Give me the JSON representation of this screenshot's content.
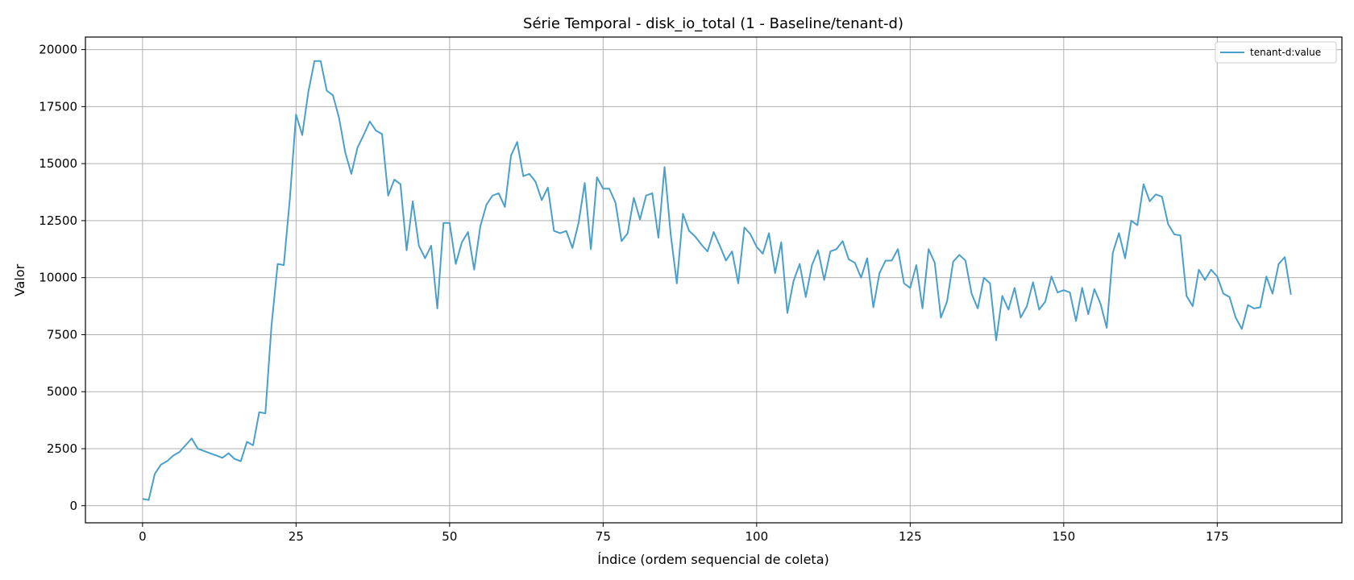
{
  "chart_data": {
    "type": "line",
    "title": "Série Temporal - disk_io_total (1 - Baseline/tenant-d)",
    "xlabel": "Índice (ordem sequencial de coleta)",
    "ylabel": "Valor",
    "xlim": [
      -9.3,
      195.3
    ],
    "ylim": [
      -750,
      20550
    ],
    "xticks": [
      0,
      25,
      50,
      75,
      100,
      125,
      150,
      175
    ],
    "yticks": [
      0,
      2500,
      5000,
      7500,
      10000,
      12500,
      15000,
      17500,
      20000
    ],
    "grid": true,
    "legend_position": "top-right",
    "colors": {
      "series": "#4a9fcb"
    },
    "series": [
      {
        "name": "tenant-d:value",
        "values": [
          300,
          250,
          1400,
          1800,
          1950,
          2200,
          2350,
          2650,
          2950,
          2500,
          2400,
          2300,
          2200,
          2100,
          2300,
          2050,
          1950,
          2800,
          2650,
          4100,
          4050,
          7900,
          10600,
          10550,
          13500,
          17150,
          16250,
          18150,
          19500,
          19500,
          18200,
          18000,
          17000,
          15500,
          14550,
          15700,
          16250,
          16850,
          16450,
          16300,
          13600,
          14300,
          14100,
          11200,
          13350,
          11400,
          10850,
          11400,
          8650,
          12400,
          12400,
          10600,
          11550,
          12000,
          10350,
          12250,
          13200,
          13600,
          13700,
          13100,
          15350,
          15950,
          14450,
          14550,
          14200,
          13400,
          13950,
          12050,
          11950,
          12050,
          11300,
          12400,
          14150,
          11250,
          14400,
          13900,
          13900,
          13300,
          11600,
          11950,
          13500,
          12550,
          13600,
          13700,
          11750,
          14850,
          11900,
          9750,
          12800,
          12050,
          11800,
          11450,
          11150,
          12000,
          11400,
          10750,
          11150,
          9750,
          12200,
          11900,
          11350,
          11050,
          11950,
          10200,
          11550,
          8450,
          9850,
          10600,
          9150,
          10550,
          11200,
          9900,
          11150,
          11250,
          11600,
          10800,
          10650,
          10000,
          10850,
          8700,
          10200,
          10750,
          10750,
          11250,
          9750,
          9550,
          10550,
          8650,
          11250,
          10650,
          8250,
          8950,
          10700,
          11000,
          10750,
          9300,
          8650,
          10000,
          9750,
          7250,
          9200,
          8600,
          9550,
          8250,
          8750,
          9800,
          8600,
          8950,
          10050,
          9350,
          9450,
          9350,
          8100,
          9550,
          8400,
          9500,
          8850,
          7800,
          11100,
          11950,
          10850,
          12500,
          12300,
          14100,
          13350,
          13650,
          13550,
          12350,
          11900,
          11850,
          9200,
          8750,
          10350,
          9900,
          10350,
          10050,
          9300,
          9150,
          8250,
          7750,
          8800,
          8650,
          8700,
          10050,
          9300,
          10600,
          10900,
          9250
        ]
      }
    ]
  }
}
